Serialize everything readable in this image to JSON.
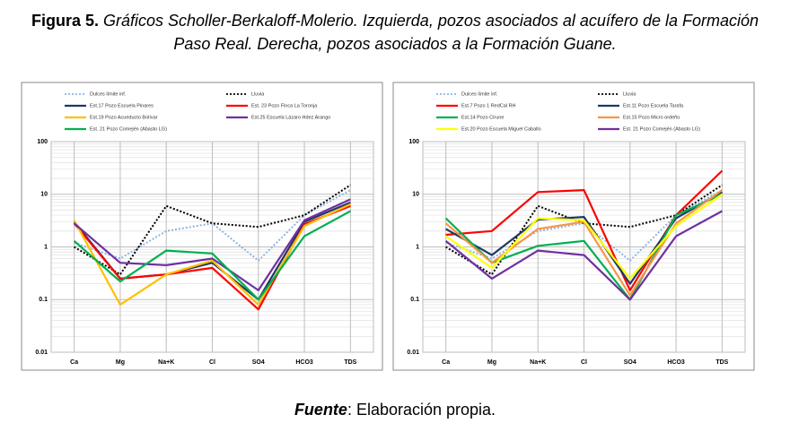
{
  "title": {
    "label": "Figura 5.",
    "text": "Gráficos Scholler-Berkaloff-Molerio. Izquierda, pozos asociados al acuífero de la Formación Paso Real. Derecha, pozos asociados a la Formación Guane."
  },
  "chart_data": [
    {
      "type": "line",
      "log_scale": true,
      "grid": true,
      "minor_grid": true,
      "categories": [
        "Ca",
        "Mg",
        "Na+K",
        "Cl",
        "SO4",
        "HCO3",
        "TDS"
      ],
      "ylim": [
        0.01,
        100
      ],
      "yticks": [
        0.01,
        0.1,
        1,
        10,
        100
      ],
      "series": [
        {
          "name": "Dulces límite inf.",
          "color": "#8db4e2",
          "style": "dotted",
          "values": [
            1.2,
            0.6,
            2,
            2.8,
            0.55,
            4,
            12
          ]
        },
        {
          "name": "Lluvia",
          "color": "#000000",
          "style": "dotted",
          "values": [
            1.0,
            0.3,
            6,
            2.8,
            2.4,
            4,
            15
          ]
        },
        {
          "name": "Est.17 Pozo Escuela Pinares",
          "color": "#1f3864",
          "style": "solid",
          "values": [
            3,
            0.25,
            0.3,
            0.5,
            0.1,
            3,
            7
          ]
        },
        {
          "name": "Est. 23 Pozo Finca La Toronja",
          "color": "#ff0000",
          "style": "solid",
          "values": [
            2.8,
            0.25,
            0.3,
            0.4,
            0.065,
            2.7,
            6
          ]
        },
        {
          "name": "Est.19 Pozo Acueducto Bolívar",
          "color": "#ffc000",
          "style": "solid",
          "values": [
            3.2,
            0.08,
            0.3,
            0.55,
            0.08,
            2.5,
            6.5
          ]
        },
        {
          "name": "Est.25 Escuela Lázaro Hdez Arango",
          "color": "#7030a0",
          "style": "solid",
          "values": [
            2.8,
            0.5,
            0.45,
            0.6,
            0.15,
            3.2,
            8
          ]
        },
        {
          "name": "Est. 21 Pozo Comején (Abasto LG)",
          "color": "#00b050",
          "style": "solid",
          "values": [
            1.3,
            0.22,
            0.85,
            0.75,
            0.1,
            1.6,
            4.8
          ]
        }
      ]
    },
    {
      "type": "line",
      "log_scale": true,
      "grid": true,
      "minor_grid": true,
      "categories": [
        "Ca",
        "Mg",
        "Na+K",
        "Cl",
        "SO4",
        "HCO3",
        "TDS"
      ],
      "ylim": [
        0.01,
        100
      ],
      "yticks": [
        0.01,
        0.1,
        1,
        10,
        100
      ],
      "series": [
        {
          "name": "Dulces límite inf.",
          "color": "#8db4e2",
          "style": "dotted",
          "values": [
            1.2,
            0.6,
            2,
            2.8,
            0.55,
            4,
            12
          ]
        },
        {
          "name": "Lluvia",
          "color": "#000000",
          "style": "dotted",
          "values": [
            1.0,
            0.3,
            6,
            2.8,
            2.4,
            4,
            15
          ]
        },
        {
          "name": "Est.7 Pozo 1 RedCal RH",
          "color": "#ff0000",
          "style": "solid",
          "values": [
            1.7,
            2,
            11,
            12,
            0.15,
            4,
            28
          ]
        },
        {
          "name": "Est.11 Pozo Escuela Tarafa",
          "color": "#1f3864",
          "style": "solid",
          "values": [
            2.2,
            0.7,
            3.3,
            3.7,
            0.2,
            3.5,
            11
          ]
        },
        {
          "name": "Est.14 Pozo Cirune",
          "color": "#00b050",
          "style": "solid",
          "values": [
            3.5,
            0.5,
            1.05,
            1.3,
            0.1,
            4,
            10
          ]
        },
        {
          "name": "Est.15 Pozo Micro ordeño",
          "color": "#f79646",
          "style": "solid",
          "values": [
            2.8,
            0.5,
            2.2,
            3,
            0.12,
            2.8,
            12
          ]
        },
        {
          "name": "Est.20 Pozo Escuela Miguel Caballo",
          "color": "#ffff00",
          "style": "solid",
          "values": [
            1.6,
            0.4,
            3.5,
            3.2,
            0.25,
            2.5,
            10
          ]
        },
        {
          "name": "Est. 21 Pozo Comején (Abasto LG)",
          "color": "#7030a0",
          "style": "solid",
          "values": [
            1.3,
            0.25,
            0.85,
            0.7,
            0.1,
            1.6,
            4.8
          ]
        }
      ]
    }
  ],
  "caption": {
    "label": "Fuente",
    "text": ": Elaboración propia."
  }
}
